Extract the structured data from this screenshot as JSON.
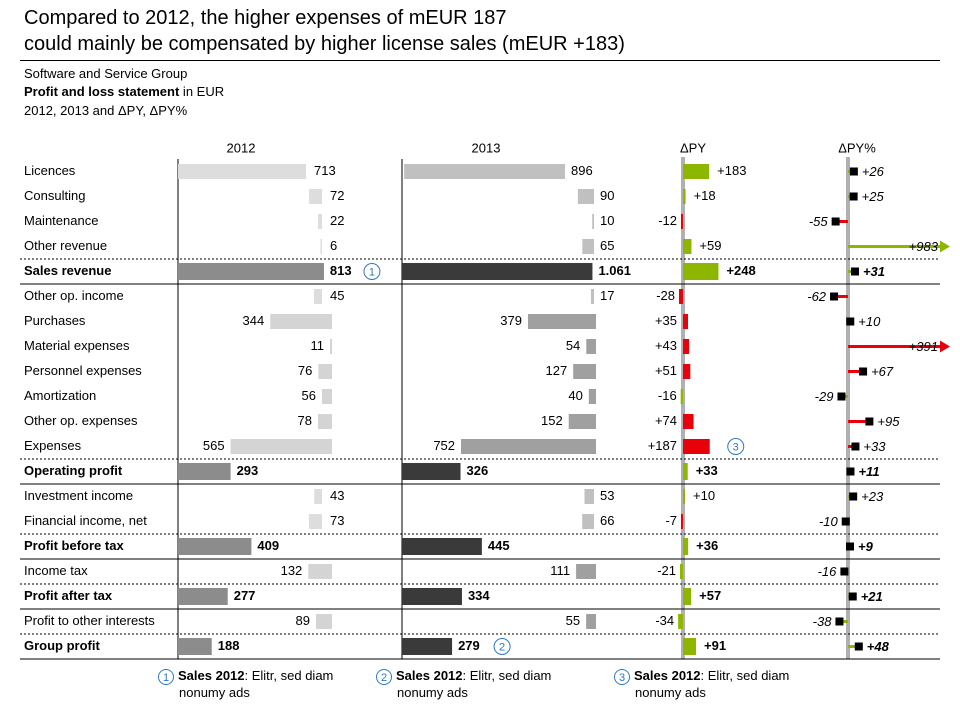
{
  "title_line1": "Compared to 2012, the higher expenses of mEUR 187",
  "title_line2": "could mainly be compensated by higher license sales (mEUR +183)",
  "subtitle_company": "Software and Service Group",
  "subtitle_statement_bold": "Profit and loss statement",
  "subtitle_statement_rest": " in EUR",
  "subtitle_periods": "2012, 2013 and ΔPY, ΔPY%",
  "footnotes": [
    {
      "marker": "1",
      "bold": "Sales 2012",
      "text": ": Elitr, sed diam",
      "text2": "nonumy ads"
    },
    {
      "marker": "2",
      "bold": "Sales 2012",
      "text": ": Elitr, sed diam",
      "text2": "nonumy ads"
    },
    {
      "marker": "3",
      "bold": "Sales 2012",
      "text": ": Elitr, sed diam",
      "text2": "nonumy ads"
    }
  ],
  "chart_data": {
    "type": "table",
    "columns": [
      "2012",
      "2013",
      "ΔPY",
      "ΔPY%"
    ],
    "colors": {
      "detail_2012": "#dddddd",
      "detail_2013": "#c0c0c0",
      "expense_2012": "#d4d4d4",
      "expense_2013": "#a0a0a0",
      "total_2012": "#8c8c8c",
      "total_2013": "#3a3a3a",
      "positive": "#8db600",
      "negative": "#e8000b",
      "axis": "#b0b0b0",
      "marker": "#2f78c4"
    },
    "rows": [
      {
        "label": "Licences",
        "kind": "rev",
        "bold": false,
        "v2012": "713",
        "v2013": "896",
        "dpy": "+183",
        "dpy_value": 183,
        "dpy_good": true,
        "pct": "+26",
        "pct_value": 26,
        "pct_good": true
      },
      {
        "label": "Consulting",
        "kind": "rev",
        "bold": false,
        "v2012": "72",
        "v2013": "90",
        "dpy": "+18",
        "dpy_value": 18,
        "dpy_good": true,
        "pct": "+25",
        "pct_value": 25,
        "pct_good": true
      },
      {
        "label": "Maintenance",
        "kind": "rev",
        "bold": false,
        "v2012": "22",
        "v2013": "10",
        "dpy": "-12",
        "dpy_value": -12,
        "dpy_good": false,
        "pct": "-55",
        "pct_value": -55,
        "pct_good": false
      },
      {
        "label": "Other revenue",
        "kind": "rev",
        "bold": false,
        "v2012": "6",
        "v2013": "65",
        "dpy": "+59",
        "dpy_value": 59,
        "dpy_good": true,
        "pct": "+983",
        "pct_value": 983,
        "pct_good": true,
        "pct_overflow": true
      },
      {
        "label": "Sales revenue",
        "kind": "total",
        "bold": true,
        "v2012": "813",
        "v2013": "1.061",
        "dpy": "+248",
        "dpy_value": 248,
        "dpy_good": true,
        "pct": "+31",
        "pct_value": 31,
        "pct_good": true,
        "marker2012": "1"
      },
      {
        "label": "Other op. income",
        "kind": "rev",
        "bold": false,
        "v2012": "45",
        "v2013": "17",
        "dpy": "-28",
        "dpy_value": -28,
        "dpy_good": false,
        "pct": "-62",
        "pct_value": -62,
        "pct_good": false
      },
      {
        "label": "Purchases",
        "kind": "exp",
        "bold": false,
        "v2012": "344",
        "v2013": "379",
        "dpy": "+35",
        "dpy_value": 35,
        "dpy_good": false,
        "pct": "+10",
        "pct_value": 10,
        "pct_good": false
      },
      {
        "label": "Material expenses",
        "kind": "exp",
        "bold": false,
        "v2012": "11",
        "v2013": "54",
        "dpy": "+43",
        "dpy_value": 43,
        "dpy_good": false,
        "pct": "+391",
        "pct_value": 391,
        "pct_good": false,
        "pct_overflow": true
      },
      {
        "label": "Personnel expenses",
        "kind": "exp",
        "bold": false,
        "v2012": "76",
        "v2013": "127",
        "dpy": "+51",
        "dpy_value": 51,
        "dpy_good": false,
        "pct": "+67",
        "pct_value": 67,
        "pct_good": false
      },
      {
        "label": "Amortization",
        "kind": "exp",
        "bold": false,
        "v2012": "56",
        "v2013": "40",
        "dpy": "-16",
        "dpy_value": -16,
        "dpy_good": true,
        "pct": "-29",
        "pct_value": -29,
        "pct_good": true
      },
      {
        "label": "Other op. expenses",
        "kind": "exp",
        "bold": false,
        "v2012": "78",
        "v2013": "152",
        "dpy": "+74",
        "dpy_value": 74,
        "dpy_good": false,
        "pct": "+95",
        "pct_value": 95,
        "pct_good": false
      },
      {
        "label": "Expenses",
        "kind": "exp",
        "bold": false,
        "v2012": "565",
        "v2013": "752",
        "dpy": "+187",
        "dpy_value": 187,
        "dpy_good": false,
        "pct": "+33",
        "pct_value": 33,
        "pct_good": false,
        "marker_dpy": "3"
      },
      {
        "label": "Operating profit",
        "kind": "total",
        "bold": true,
        "v2012": "293",
        "v2013": "326",
        "dpy": "+33",
        "dpy_value": 33,
        "dpy_good": true,
        "pct": "+11",
        "pct_value": 11,
        "pct_good": true
      },
      {
        "label": "Investment income",
        "kind": "rev",
        "bold": false,
        "v2012": "43",
        "v2013": "53",
        "dpy": "+10",
        "dpy_value": 10,
        "dpy_good": true,
        "pct": "+23",
        "pct_value": 23,
        "pct_good": true
      },
      {
        "label": "Financial income, net",
        "kind": "rev",
        "bold": false,
        "v2012": "73",
        "v2013": "66",
        "dpy": "-7",
        "dpy_value": -7,
        "dpy_good": false,
        "pct": "-10",
        "pct_value": -10,
        "pct_good": false
      },
      {
        "label": "Profit before tax",
        "kind": "total",
        "bold": true,
        "v2012": "409",
        "v2013": "445",
        "dpy": "+36",
        "dpy_value": 36,
        "dpy_good": true,
        "pct": "+9",
        "pct_value": 9,
        "pct_good": true
      },
      {
        "label": "Income tax",
        "kind": "exp",
        "bold": false,
        "v2012": "132",
        "v2013": "111",
        "dpy": "-21",
        "dpy_value": -21,
        "dpy_good": true,
        "pct": "-16",
        "pct_value": -16,
        "pct_good": true
      },
      {
        "label": "Profit after tax",
        "kind": "total",
        "bold": true,
        "v2012": "277",
        "v2013": "334",
        "dpy": "+57",
        "dpy_value": 57,
        "dpy_good": true,
        "pct": "+21",
        "pct_value": 21,
        "pct_good": true
      },
      {
        "label": "Profit to other interests",
        "kind": "exp",
        "bold": false,
        "v2012": "89",
        "v2013": "55",
        "dpy": "-34",
        "dpy_value": -34,
        "dpy_good": true,
        "pct": "-38",
        "pct_value": -38,
        "pct_good": true
      },
      {
        "label": "Group profit",
        "kind": "total",
        "bold": true,
        "v2012": "188",
        "v2013": "279",
        "dpy": "+91",
        "dpy_value": 91,
        "dpy_good": true,
        "pct": "+48",
        "pct_value": 48,
        "pct_good": true,
        "marker2013": "2"
      }
    ]
  }
}
